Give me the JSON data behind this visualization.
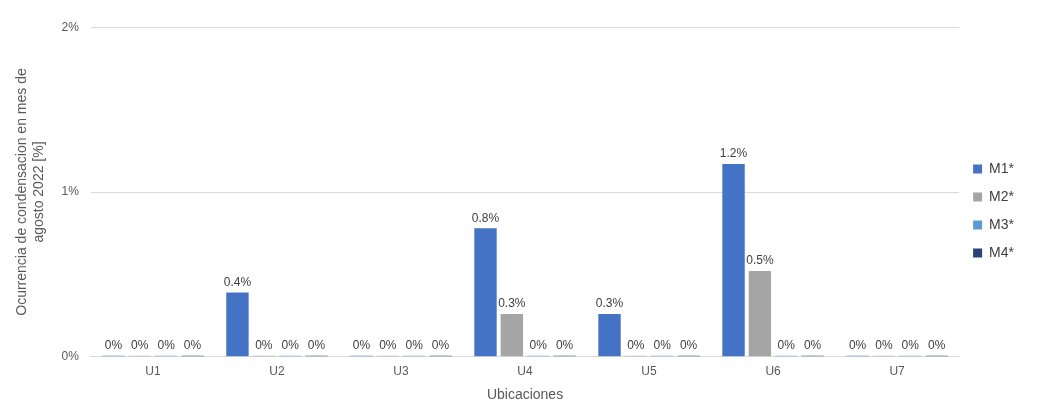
{
  "chart_data": {
    "type": "bar",
    "xlabel": "Ubicaciones",
    "ylabel": "Ocurrencia de condensacion en mes de agosto 2022 [%]",
    "categories": [
      "U1",
      "U2",
      "U3",
      "U4",
      "U5",
      "U6",
      "U7"
    ],
    "series": [
      {
        "name": "M1*",
        "color": "#4472c4",
        "values": [
          0,
          0.39,
          0,
          0.78,
          0.26,
          1.17,
          0
        ],
        "value_labels": [
          "0%",
          "0.4%",
          "0%",
          "0.8%",
          "0.3%",
          "1.2%",
          "0%"
        ]
      },
      {
        "name": "M2*",
        "color": "#a5a5a5",
        "values": [
          0,
          0,
          0,
          0.26,
          0,
          0.52,
          0
        ],
        "value_labels": [
          "0%",
          "0%",
          "0%",
          "0.3%",
          "0%",
          "0.5%",
          "0%"
        ]
      },
      {
        "name": "M3*",
        "color": "#5b9bd5",
        "values": [
          0,
          0,
          0,
          0,
          0,
          0,
          0
        ],
        "value_labels": [
          "0%",
          "0%",
          "0%",
          "0%",
          "0%",
          "0%",
          "0%"
        ]
      },
      {
        "name": "M4*",
        "color": "#264478",
        "values": [
          0,
          0,
          0,
          0,
          0,
          0,
          0
        ],
        "value_labels": [
          "0%",
          "0%",
          "0%",
          "0%",
          "0%",
          "0%",
          "0%"
        ]
      }
    ],
    "ylim": [
      0,
      2
    ],
    "yticks": [
      {
        "value": 0,
        "label": "0%"
      },
      {
        "value": 1,
        "label": "1%"
      },
      {
        "value": 2,
        "label": "2%"
      }
    ],
    "grid": "y",
    "legend": "right"
  }
}
